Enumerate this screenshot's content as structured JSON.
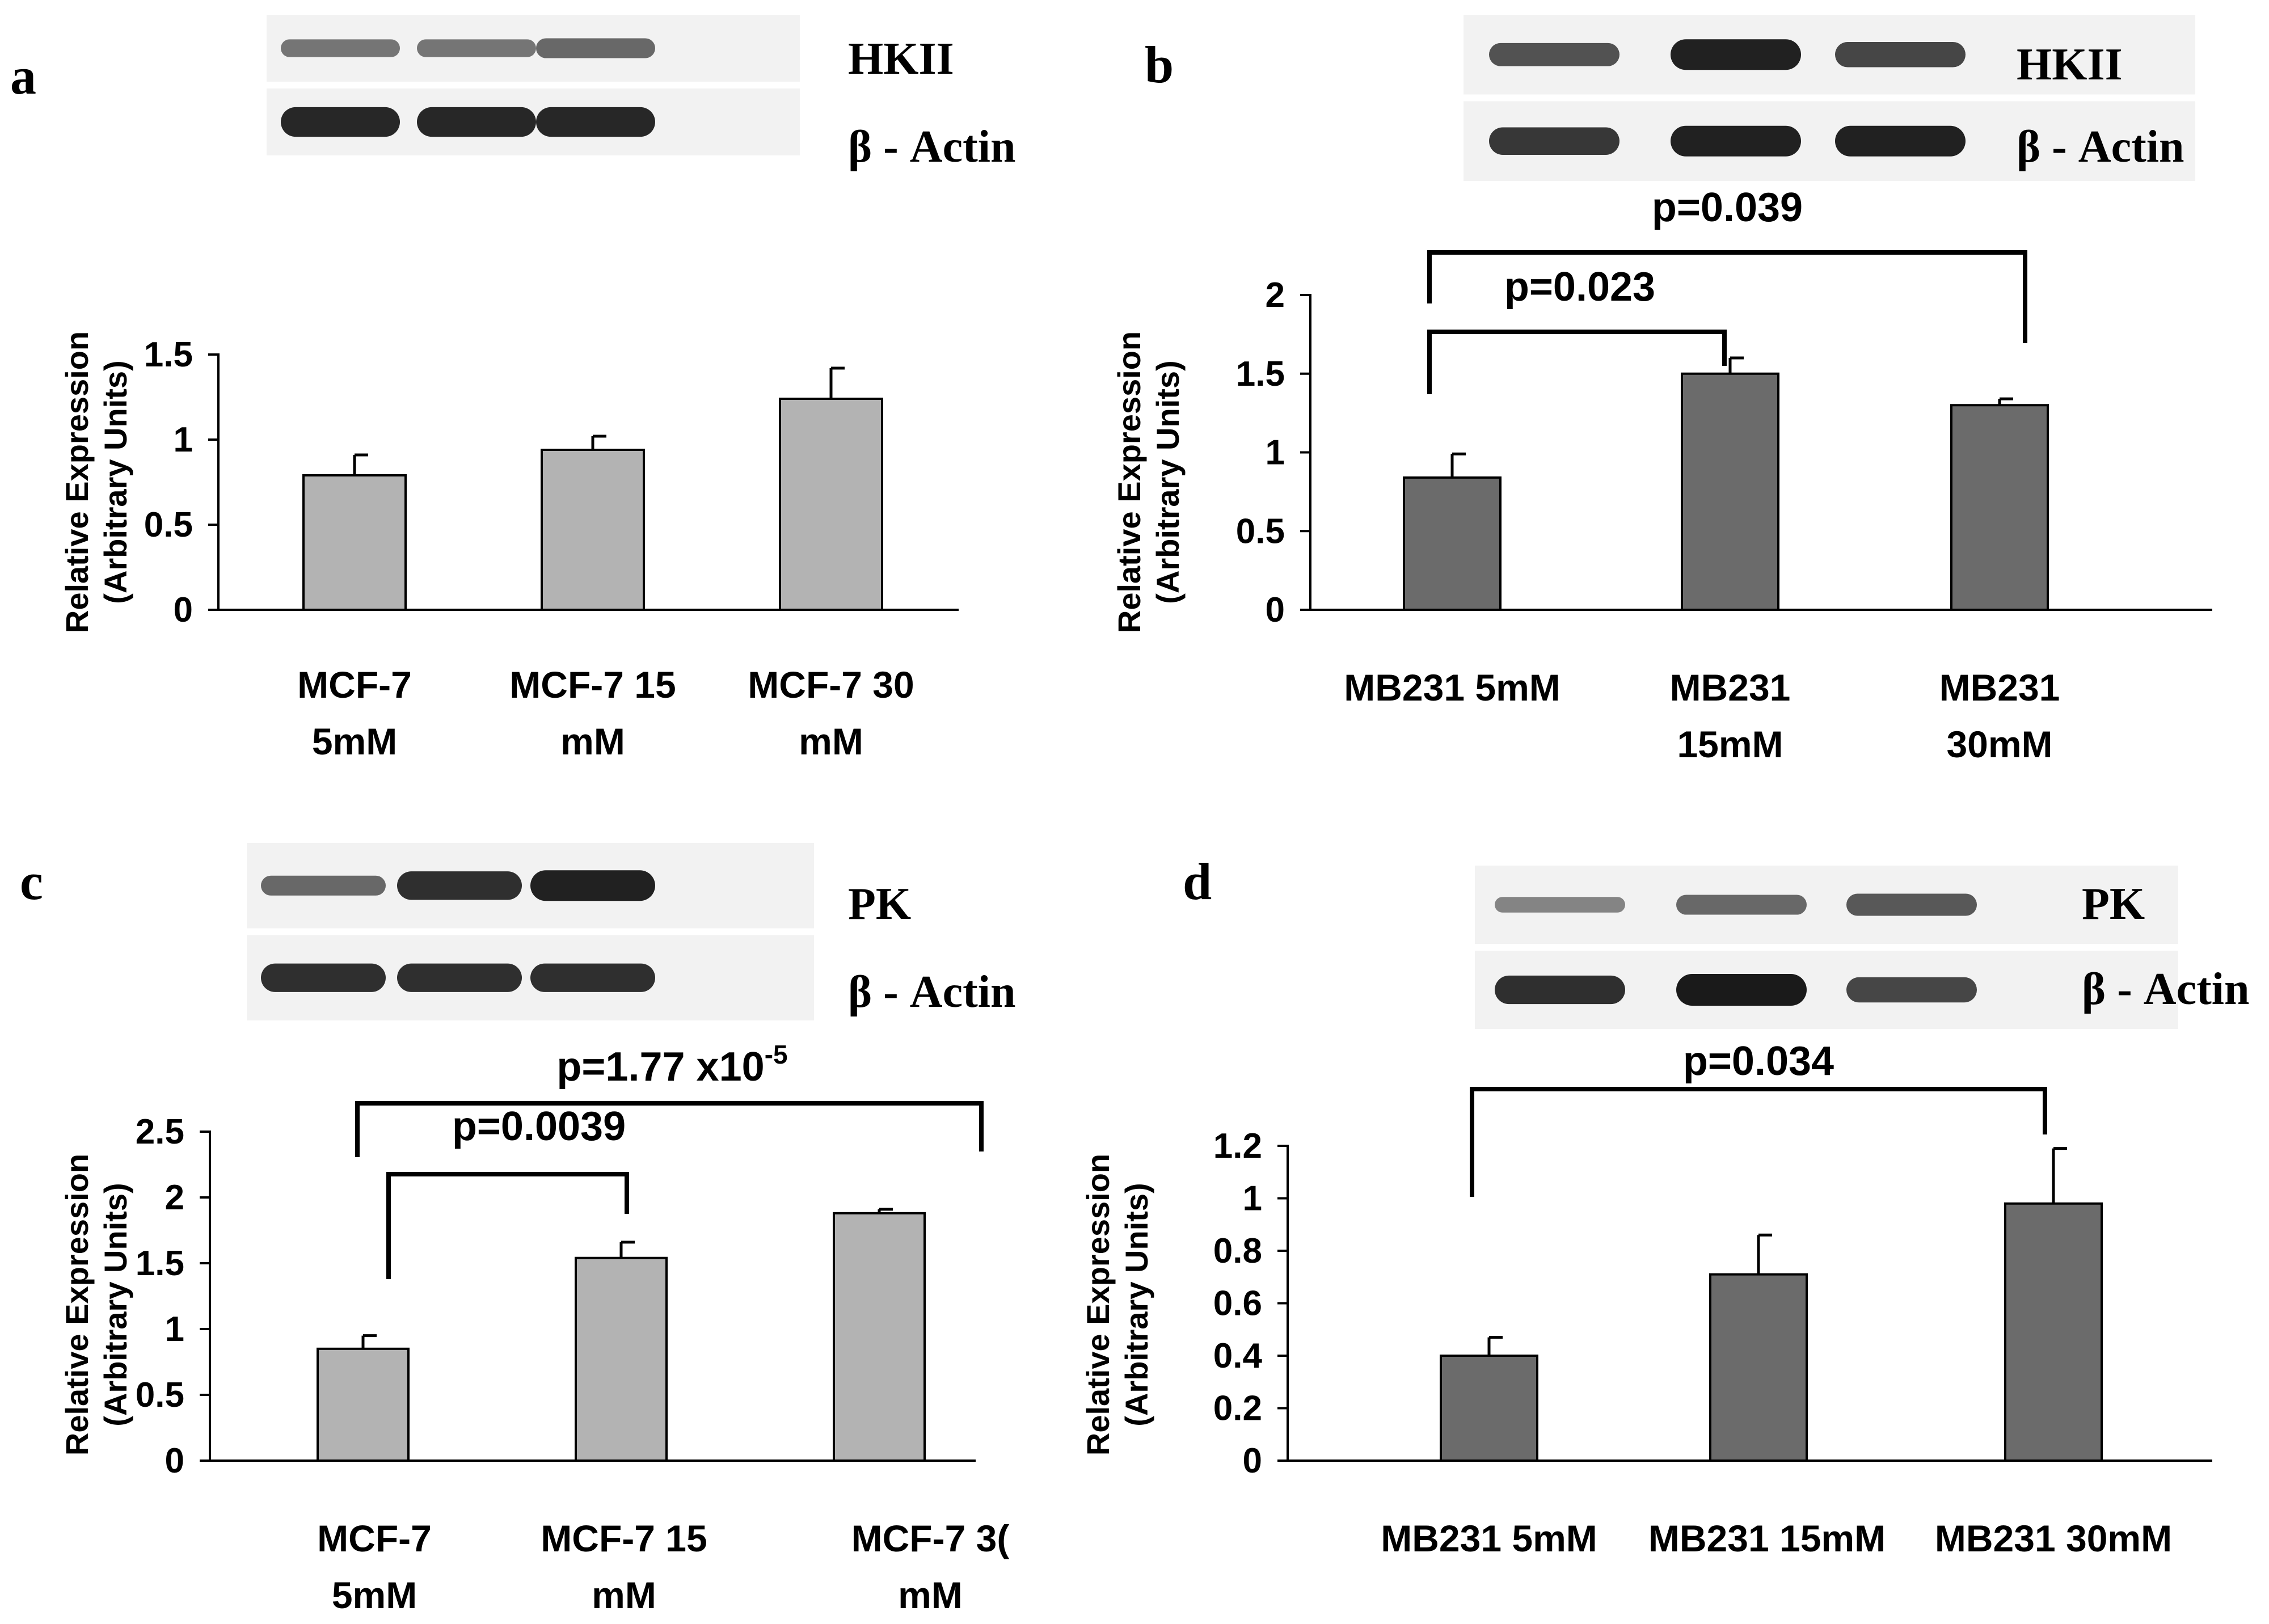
{
  "colors": {
    "bar_light": "#b3b3b3",
    "bar_dark": "#6b6b6b",
    "band": "#1a1a1a"
  },
  "panels": [
    {
      "letter": "a",
      "blot_labels": [
        "HKII",
        "β - Actin"
      ],
      "blot_lanes": 3,
      "band_strength": [
        [
          0.35,
          0.35,
          0.45
        ],
        [
          0.9,
          0.9,
          0.9
        ]
      ]
    },
    {
      "letter": "b",
      "blot_labels": [
        "HKII",
        "β - Actin"
      ],
      "blot_lanes": 3,
      "band_strength": [
        [
          0.6,
          0.95,
          0.7
        ],
        [
          0.8,
          0.95,
          0.95
        ]
      ]
    },
    {
      "letter": "c",
      "blot_labels": [
        "PK",
        "β - Actin"
      ],
      "blot_lanes": 3,
      "band_strength": [
        [
          0.45,
          0.85,
          0.95
        ],
        [
          0.85,
          0.85,
          0.85
        ]
      ]
    },
    {
      "letter": "d",
      "blot_labels": [
        "PK",
        "β - Actin"
      ],
      "blot_lanes": 3,
      "band_strength": [
        [
          0.25,
          0.45,
          0.55
        ],
        [
          0.85,
          1.0,
          0.7
        ]
      ]
    }
  ],
  "chart_data": [
    {
      "panel": "a",
      "type": "bar",
      "categories": [
        [
          "MCF-7",
          "5mM"
        ],
        [
          "MCF-7 15",
          "mM"
        ],
        [
          "MCF-7 30",
          "mM"
        ]
      ],
      "values": [
        0.79,
        0.94,
        1.24
      ],
      "errors": [
        0.12,
        0.08,
        0.18
      ],
      "ylabel": [
        "Relative Expression",
        "(Arbitrary Units)"
      ],
      "ylim": [
        0,
        1.5
      ],
      "yticks": [
        0,
        0.5,
        1,
        1.5
      ],
      "ytick_labels": [
        "0",
        "0.5",
        "1",
        "1.5"
      ],
      "color": "#b3b3b3",
      "annotations": []
    },
    {
      "panel": "b",
      "type": "bar",
      "categories": [
        [
          "MB231 5mM"
        ],
        [
          "MB231",
          "15mM"
        ],
        [
          "MB231",
          "30mM"
        ]
      ],
      "values": [
        0.84,
        1.5,
        1.3
      ],
      "errors": [
        0.15,
        0.1,
        0.04
      ],
      "ylabel": [
        "Relative Expression",
        "(Arbitrary Units)"
      ],
      "ylim": [
        0,
        2
      ],
      "yticks": [
        0,
        0.5,
        1,
        1.5,
        2
      ],
      "ytick_labels": [
        "0",
        "0.5",
        "1",
        "1.5",
        "2"
      ],
      "color": "#6b6b6b",
      "annotations": [
        {
          "text": "p=0.039",
          "from": 0,
          "to": 2
        },
        {
          "text": "p=0.023",
          "from": 0,
          "to": 1
        }
      ]
    },
    {
      "panel": "c",
      "type": "bar",
      "categories": [
        [
          "MCF-7",
          "5mM"
        ],
        [
          "MCF-7 15",
          "mM"
        ],
        [
          "MCF-7 3(",
          "mM"
        ]
      ],
      "values": [
        0.85,
        1.54,
        1.88
      ],
      "errors": [
        0.1,
        0.12,
        0.03
      ],
      "ylabel": [
        "Relative Expression",
        "(Arbitrary Units)"
      ],
      "ylim": [
        0,
        2.5
      ],
      "yticks": [
        0,
        0.5,
        1,
        1.5,
        2,
        2.5
      ],
      "ytick_labels": [
        "0",
        "0.5",
        "1",
        "1.5",
        "2",
        "2.5"
      ],
      "color": "#b3b3b3",
      "annotations": [
        {
          "text": "p=1.77 x10",
          "sup": "-5",
          "from": 0,
          "to": 2
        },
        {
          "text": "p=0.0039",
          "from": 0,
          "to": 1
        }
      ]
    },
    {
      "panel": "d",
      "type": "bar",
      "categories": [
        [
          "MB231 5mM"
        ],
        [
          "MB231 15mM"
        ],
        [
          "MB231 30mM"
        ]
      ],
      "values": [
        0.4,
        0.71,
        0.98
      ],
      "errors": [
        0.07,
        0.15,
        0.21
      ],
      "ylabel": [
        "Relative Expression",
        "(Arbitrary Units)"
      ],
      "ylim": [
        0,
        1.2
      ],
      "yticks": [
        0,
        0.2,
        0.4,
        0.6,
        0.8,
        1,
        1.2
      ],
      "ytick_labels": [
        "0",
        "0.2",
        "0.4",
        "0.6",
        "0.8",
        "1",
        "1.2"
      ],
      "color": "#6b6b6b",
      "annotations": [
        {
          "text": "p=0.034",
          "from": 0,
          "to": 2
        }
      ]
    }
  ]
}
